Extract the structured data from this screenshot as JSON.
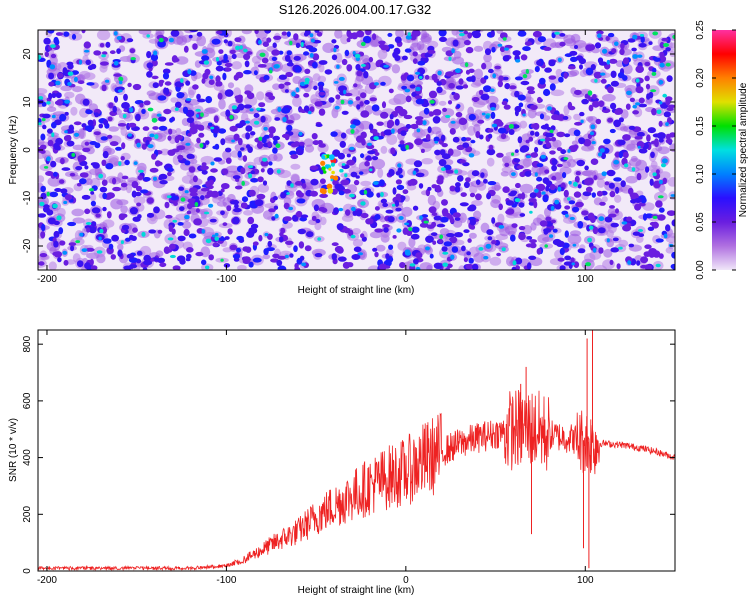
{
  "title": "S126.2026.004.00.17.G32",
  "chart_data": [
    {
      "type": "heatmap",
      "name": "spectrogram",
      "xlabel": "Height of straight line (km)",
      "ylabel": "Frequency (Hz)",
      "xlim": [
        -205,
        150
      ],
      "ylim": [
        -25,
        25
      ],
      "xticks": [
        -200,
        -100,
        0,
        100
      ],
      "xtick_labels": [
        "-200",
        "-100",
        "0",
        "100"
      ],
      "yticks": [
        -20,
        -10,
        0,
        10,
        20
      ],
      "ytick_labels": [
        "-20",
        "-10",
        "0",
        "10",
        "20"
      ],
      "colorbar": {
        "label": "Normalized spectral amplitude",
        "range": [
          0.0,
          0.25
        ],
        "ticks": [
          0.0,
          0.05,
          0.1,
          0.15,
          0.2,
          0.25
        ],
        "tick_labels": [
          "0.00",
          "0.05",
          "0.10",
          "0.15",
          "0.20",
          "0.25"
        ],
        "colors": [
          "#f0e6f8",
          "#b070e0",
          "#6a1ee0",
          "#2a10ff",
          "#0080ff",
          "#00e0e0",
          "#00e000",
          "#e0e000",
          "#ff8000",
          "#ff0000",
          "#ff30a0"
        ]
      },
      "features": [
        {
          "desc": "bright cluster",
          "x": -42,
          "y": -5,
          "peak": 0.2
        },
        {
          "desc": "vertical gap",
          "x": -43
        }
      ]
    },
    {
      "type": "line",
      "name": "snr",
      "xlabel": "Height of straight line (km)",
      "ylabel": "SNR (10 * v/v)",
      "xlim": [
        -205,
        150
      ],
      "ylim": [
        0,
        850
      ],
      "xticks": [
        -200,
        -100,
        0,
        100
      ],
      "xtick_labels": [
        "-200",
        "-100",
        "0",
        "100"
      ],
      "yticks": [
        0,
        200,
        400,
        600,
        800
      ],
      "ytick_labels": [
        "0",
        "200",
        "400",
        "600",
        "800"
      ],
      "color": "#ee2222",
      "series": [
        {
          "name": "SNR",
          "x": [
            -205,
            -150,
            -120,
            -100,
            -90,
            -80,
            -70,
            -60,
            -50,
            -40,
            -30,
            -20,
            -10,
            0,
            10,
            20,
            30,
            40,
            50,
            60,
            70,
            80,
            90,
            100,
            105,
            110,
            120,
            130,
            140,
            150
          ],
          "values": [
            10,
            10,
            10,
            18,
            40,
            75,
            110,
            140,
            190,
            230,
            265,
            300,
            330,
            350,
            390,
            420,
            450,
            470,
            485,
            500,
            505,
            480,
            470,
            460,
            450,
            450,
            445,
            435,
            420,
            400
          ]
        }
      ],
      "spikes": [
        {
          "x": 67,
          "y": 720
        },
        {
          "x": 64,
          "y": 660
        },
        {
          "x": 70,
          "y": 130
        },
        {
          "x": 101,
          "y": 820
        },
        {
          "x": 104,
          "y": 850
        },
        {
          "x": 102,
          "y": 10
        },
        {
          "x": 99,
          "y": 80
        }
      ]
    }
  ]
}
